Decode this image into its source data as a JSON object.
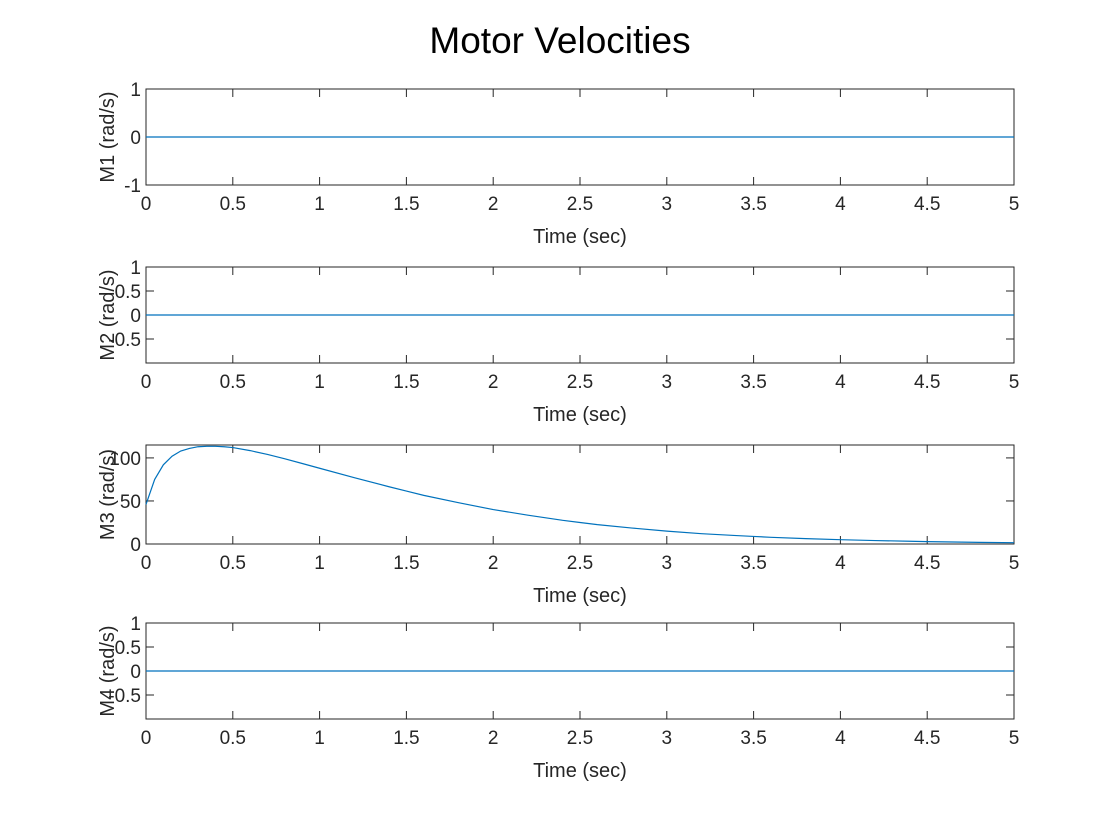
{
  "chart_data": {
    "title": "Motor Velocities",
    "panels": [
      {
        "type": "line",
        "xlabel": "Time (sec)",
        "ylabel": "M1 (rad/s)",
        "xlim": [
          0,
          5
        ],
        "ylim": [
          -1,
          1
        ],
        "xticks": [
          0,
          0.5,
          1,
          1.5,
          2,
          2.5,
          3,
          3.5,
          4,
          4.5,
          5
        ],
        "xticklabels": [
          "0",
          "0.5",
          "1",
          "1.5",
          "2",
          "2.5",
          "3",
          "3.5",
          "4",
          "4.5",
          "5"
        ],
        "yticks": [
          -1,
          0,
          1
        ],
        "yticklabels": [
          "-1",
          "0",
          "1"
        ],
        "grid": false,
        "series": [
          {
            "x": [
              0,
              5
            ],
            "y": [
              0,
              0
            ]
          }
        ]
      },
      {
        "type": "line",
        "xlabel": "Time (sec)",
        "ylabel": "M2 (rad/s)",
        "xlim": [
          0,
          5
        ],
        "ylim": [
          -1,
          1
        ],
        "xticks": [
          0,
          0.5,
          1,
          1.5,
          2,
          2.5,
          3,
          3.5,
          4,
          4.5,
          5
        ],
        "xticklabels": [
          "0",
          "0.5",
          "1",
          "1.5",
          "2",
          "2.5",
          "3",
          "3.5",
          "4",
          "4.5",
          "5"
        ],
        "yticks": [
          -0.5,
          0,
          0.5,
          1
        ],
        "yticklabels": [
          "-0.5",
          "0",
          "0.5",
          "1"
        ],
        "grid": false,
        "series": [
          {
            "x": [
              0,
              5
            ],
            "y": [
              0,
              0
            ]
          }
        ]
      },
      {
        "type": "line",
        "xlabel": "Time (sec)",
        "ylabel": "M3 (rad/s)",
        "xlim": [
          0,
          5
        ],
        "ylim": [
          0,
          115
        ],
        "xticks": [
          0,
          0.5,
          1,
          1.5,
          2,
          2.5,
          3,
          3.5,
          4,
          4.5,
          5
        ],
        "xticklabels": [
          "0",
          "0.5",
          "1",
          "1.5",
          "2",
          "2.5",
          "3",
          "3.5",
          "4",
          "4.5",
          "5"
        ],
        "yticks": [
          0,
          50,
          100
        ],
        "yticklabels": [
          "0",
          "50",
          "100"
        ],
        "grid": false,
        "series": [
          {
            "x": [
              0,
              0.05,
              0.1,
              0.15,
              0.2,
              0.25,
              0.3,
              0.35,
              0.4,
              0.45,
              0.5,
              0.6,
              0.7,
              0.8,
              0.9,
              1.0,
              1.2,
              1.4,
              1.5,
              1.6,
              1.8,
              2.0,
              2.2,
              2.4,
              2.5,
              2.6,
              2.8,
              3.0,
              3.2,
              3.4,
              3.5,
              3.6,
              3.8,
              4.0,
              4.2,
              4.4,
              4.5,
              4.6,
              4.8,
              5.0
            ],
            "y": [
              46,
              75,
              92,
              102,
              108,
              111,
              113,
              113.5,
              113.5,
              113,
              112,
              108.5,
              104,
              99,
              93.5,
              88,
              77,
              66.5,
              61.5,
              56.5,
              48,
              40,
              33.5,
              27.5,
              25,
              22.5,
              18.5,
              15,
              12,
              9.8,
              8.8,
              7.8,
              6.2,
              5,
              4,
              3.2,
              2.8,
              2.5,
              1.9,
              1.5
            ]
          }
        ]
      },
      {
        "type": "line",
        "xlabel": "Time (sec)",
        "ylabel": "M4 (rad/s)",
        "xlim": [
          0,
          5
        ],
        "ylim": [
          -1,
          1
        ],
        "xticks": [
          0,
          0.5,
          1,
          1.5,
          2,
          2.5,
          3,
          3.5,
          4,
          4.5,
          5
        ],
        "xticklabels": [
          "0",
          "0.5",
          "1",
          "1.5",
          "2",
          "2.5",
          "3",
          "3.5",
          "4",
          "4.5",
          "5"
        ],
        "yticks": [
          -0.5,
          0,
          0.5,
          1
        ],
        "yticklabels": [
          "-0.5",
          "0",
          "0.5",
          "1"
        ],
        "grid": false,
        "series": [
          {
            "x": [
              0,
              5
            ],
            "y": [
              0,
              0
            ]
          }
        ]
      }
    ]
  },
  "colors": {
    "line": "#0072BD",
    "axes": "#262626",
    "background": "#FFFFFF"
  }
}
